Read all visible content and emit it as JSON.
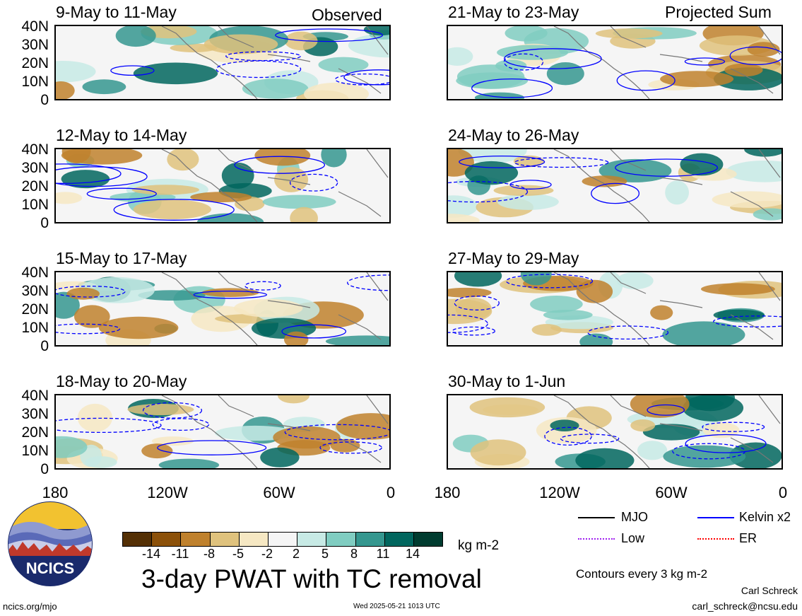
{
  "header": {
    "left_tag": "Observed",
    "right_tag": "Projected Sum"
  },
  "left_panels": [
    {
      "title": "9-May to 11-May"
    },
    {
      "title": "12-May to 14-May"
    },
    {
      "title": "15-May to 17-May"
    },
    {
      "title": "18-May to 20-May"
    }
  ],
  "right_panels": [
    {
      "title": "21-May to 23-May"
    },
    {
      "title": "24-May to 26-May"
    },
    {
      "title": "27-May to 29-May"
    },
    {
      "title": "30-May to 1-Jun"
    }
  ],
  "lat_labels": [
    "40N",
    "30N",
    "20N",
    "10N",
    "0"
  ],
  "lon_labels": [
    "180",
    "120W",
    "60W",
    "0"
  ],
  "colorbar": {
    "ticks": [
      "-14",
      "-11",
      "-8",
      "-5",
      "-2",
      "2",
      "5",
      "8",
      "11",
      "14"
    ],
    "colors": [
      "#543005",
      "#8c510a",
      "#bf812d",
      "#dfc27d",
      "#f6e8c3",
      "#f5f5f5",
      "#c7eae5",
      "#80cdc1",
      "#35978f",
      "#01665e",
      "#003c30"
    ],
    "unit": "kg m-2"
  },
  "legend": {
    "items": [
      {
        "label": "MJO",
        "color": "#000000"
      },
      {
        "label": "Kelvin x2",
        "color": "#0000ff"
      },
      {
        "label": "Low",
        "color": "#a020f0"
      },
      {
        "label": "ER",
        "color": "#ff0000"
      }
    ],
    "contour_note": "Contours every 3 kg m-2"
  },
  "main_title": "3-day PWAT with TC removal",
  "footer": {
    "url": "ncics.org/mjo",
    "timestamp": "Wed 2025-05-21 1013 UTC",
    "author": "Carl Schreck",
    "email": "carl_schreck@ncsu.edu"
  },
  "logo": {
    "text": "NCICS"
  }
}
